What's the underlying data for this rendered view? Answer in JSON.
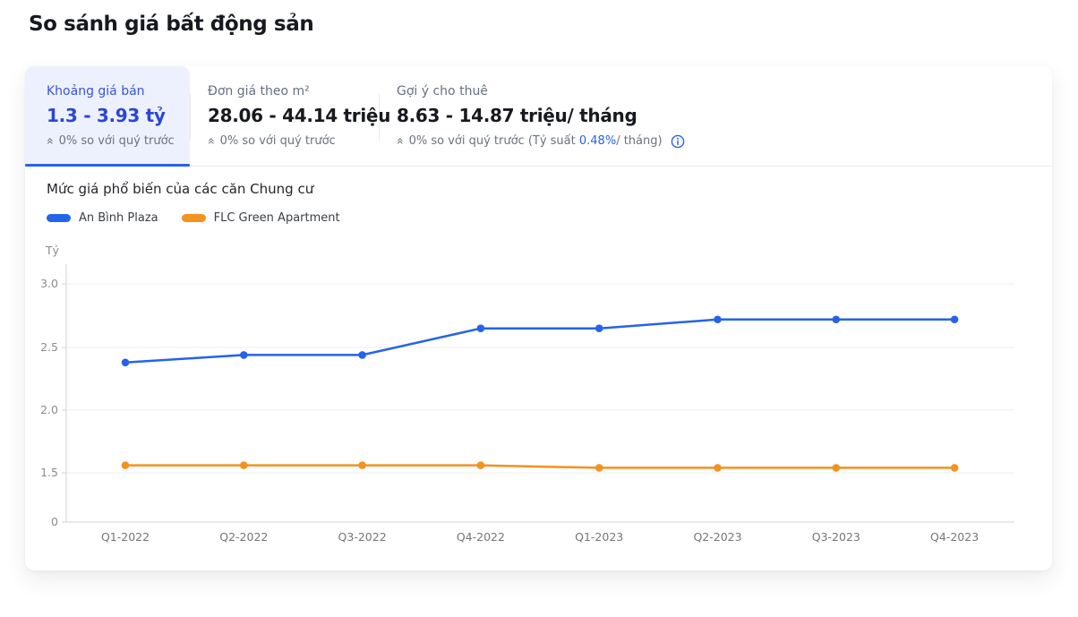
{
  "page": {
    "title": "So sánh giá bất động sản"
  },
  "tabs": [
    {
      "label": "Khoảng giá bán",
      "value": "1.3 - 3.93 tỷ",
      "change": "0% so với quý trước"
    },
    {
      "label": "Đơn giá theo m²",
      "value": "28.06 - 44.14 triệu",
      "change": "0% so với quý trước"
    },
    {
      "label": "Gợi ý cho thuê",
      "value": "8.63 - 14.87 triệu/ tháng",
      "change_prefix": "0% so với quý trước (Tỷ suất ",
      "rate": "0.48%",
      "change_suffix": "/ tháng)"
    }
  ],
  "chart": {
    "title": "Mức giá phổ biến của các căn Chung cư",
    "legend": [
      {
        "label": "An Bình Plaza",
        "color": "#2563EB"
      },
      {
        "label": "FLC Green Apartment",
        "color": "#F5911E"
      }
    ]
  },
  "chart_data": {
    "type": "line",
    "title": "Mức giá phổ biến của các căn Chung cư",
    "x_categories": [
      "Q1-2022",
      "Q2-2022",
      "Q3-2022",
      "Q4-2022",
      "Q1-2023",
      "Q2-2023",
      "Q3-2023",
      "Q4-2023"
    ],
    "series": [
      {
        "name": "An Bình Plaza",
        "color": "#2563EB",
        "values": [
          2.38,
          2.44,
          2.44,
          2.65,
          2.65,
          2.72,
          2.72,
          2.72
        ]
      },
      {
        "name": "FLC Green Apartment",
        "color": "#F5911E",
        "values": [
          1.56,
          1.56,
          1.56,
          1.56,
          1.54,
          1.54,
          1.54,
          1.54
        ]
      }
    ],
    "ylabel": "Tỷ",
    "y_ticks": [
      0,
      1.5,
      2.0,
      2.5,
      3.0
    ],
    "ylim": [
      0,
      3.2
    ],
    "grid": true,
    "legend_position": "top-left",
    "y_axis_note": "axis segment between 0 and 1.5 is compressed"
  },
  "colors": {
    "accent_blue": "#2563EB",
    "active_tab_label": "#3B53D8",
    "active_tab_value": "#2B46D5",
    "active_tab_bg": "#EDF1FD",
    "series_blue": "#2563EB",
    "series_orange": "#F5911E",
    "gridline": "#ECECEC",
    "axis": "#D6D6D6",
    "tick_text": "#8C8C8C"
  }
}
